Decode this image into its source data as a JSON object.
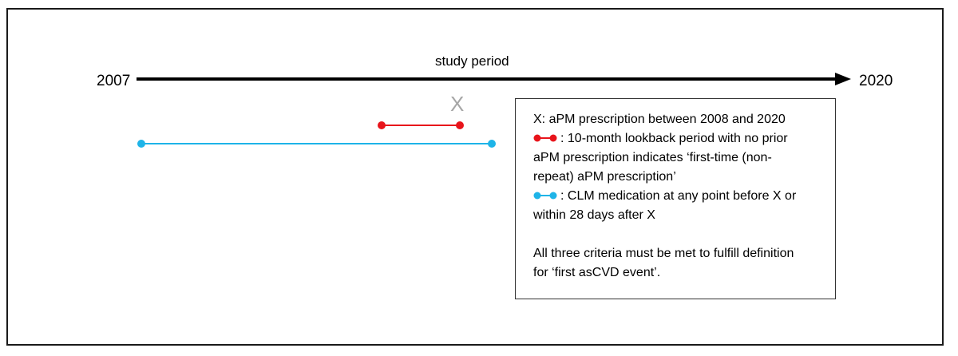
{
  "timeline": {
    "start_year": "2007",
    "end_year": "2020",
    "period_label": "study period",
    "marker_label": "X"
  },
  "colors": {
    "lookback": "#e8141b",
    "clm": "#1eb4e8",
    "arrow": "#000000",
    "marker": "#a6a6a6"
  },
  "legend": {
    "line1": "X: aPM prescription between 2008 and 2020",
    "line2": ": 10-month lookback period with no prior",
    "line3": "aPM prescription indicates ‘first-time (non-",
    "line4": "repeat) aPM prescription’",
    "line5": ":  CLM medication at any point before X or",
    "line6": "within 28 days after X",
    "line7": "All three criteria must be met to fulfill definition",
    "line8": "for ‘first asCVD event’."
  }
}
